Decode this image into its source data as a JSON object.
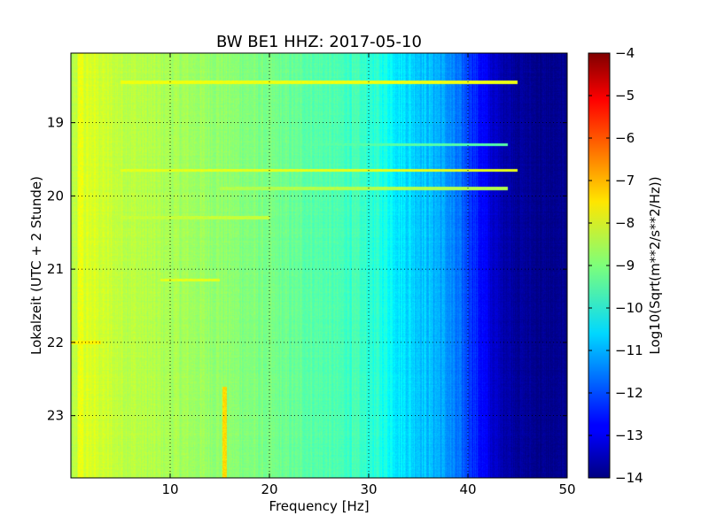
{
  "chart_data": {
    "type": "heatmap",
    "title": "BW BE1 HHZ: 2017-05-10",
    "xlabel": "Frequency [Hz]",
    "ylabel": "Lokalzeit (UTC + 2 Stunde)",
    "xlim": [
      0,
      50
    ],
    "ylim": [
      18.05,
      23.85
    ],
    "y_inverted": true,
    "grid": true,
    "x_ticks": [
      10,
      20,
      30,
      40,
      50
    ],
    "x_tick_labels": [
      "10",
      "20",
      "30",
      "40",
      "50"
    ],
    "y_ticks": [
      19,
      20,
      21,
      22,
      23
    ],
    "y_tick_labels": [
      "19",
      "20",
      "21",
      "22",
      "23"
    ],
    "colormap": "jet",
    "colorbar": {
      "label": "Log10(Sqrt(m**2/s**2/Hz))",
      "range": [
        -14,
        -4
      ],
      "ticks": [
        -4,
        -5,
        -6,
        -7,
        -8,
        -9,
        -10,
        -11,
        -12,
        -13,
        -14
      ],
      "tick_labels": [
        "−4",
        "−5",
        "−6",
        "−7",
        "−8",
        "−9",
        "−10",
        "−11",
        "−12",
        "−13",
        "−14"
      ]
    },
    "spectrum_profile": {
      "frequency": [
        0,
        1,
        2,
        4,
        6,
        8,
        10,
        15,
        20,
        25,
        28,
        30,
        31,
        32,
        33,
        35,
        37,
        38,
        39,
        40,
        41,
        42,
        43,
        45,
        47,
        50
      ],
      "value": [
        -8.6,
        -8.2,
        -8.1,
        -8.3,
        -8.4,
        -8.5,
        -8.6,
        -8.8,
        -9.1,
        -9.4,
        -9.6,
        -9.8,
        -9.9,
        -10.1,
        -10.4,
        -10.7,
        -11.0,
        -11.3,
        -11.7,
        -12.0,
        -12.5,
        -13.0,
        -13.4,
        -13.7,
        -13.85,
        -13.9
      ]
    },
    "bands": [
      {
        "time": 18.45,
        "f_start": 5,
        "f_end": 45,
        "value": -7.9
      },
      {
        "time": 19.3,
        "f_start": 20,
        "f_end": 44,
        "value": -9.4
      },
      {
        "time": 19.65,
        "f_start": 5,
        "f_end": 45,
        "value": -8.0
      },
      {
        "time": 19.9,
        "f_start": 15,
        "f_end": 44,
        "value": -8.5
      },
      {
        "time": 20.3,
        "f_start": 5,
        "f_end": 20,
        "value": -8.3
      },
      {
        "time": 21.15,
        "f_start": 9,
        "f_end": 15,
        "value": -8.0
      },
      {
        "time": 22.0,
        "f_start": 0,
        "f_end": 3,
        "value": -7.6
      }
    ],
    "hot_lines": [
      {
        "frequency": 15.5,
        "t_start": 22.6,
        "t_end": 23.85,
        "value": -7.4
      },
      {
        "frequency": 1.0,
        "t_start": 18.05,
        "t_end": 23.85,
        "value": -7.9
      }
    ]
  }
}
